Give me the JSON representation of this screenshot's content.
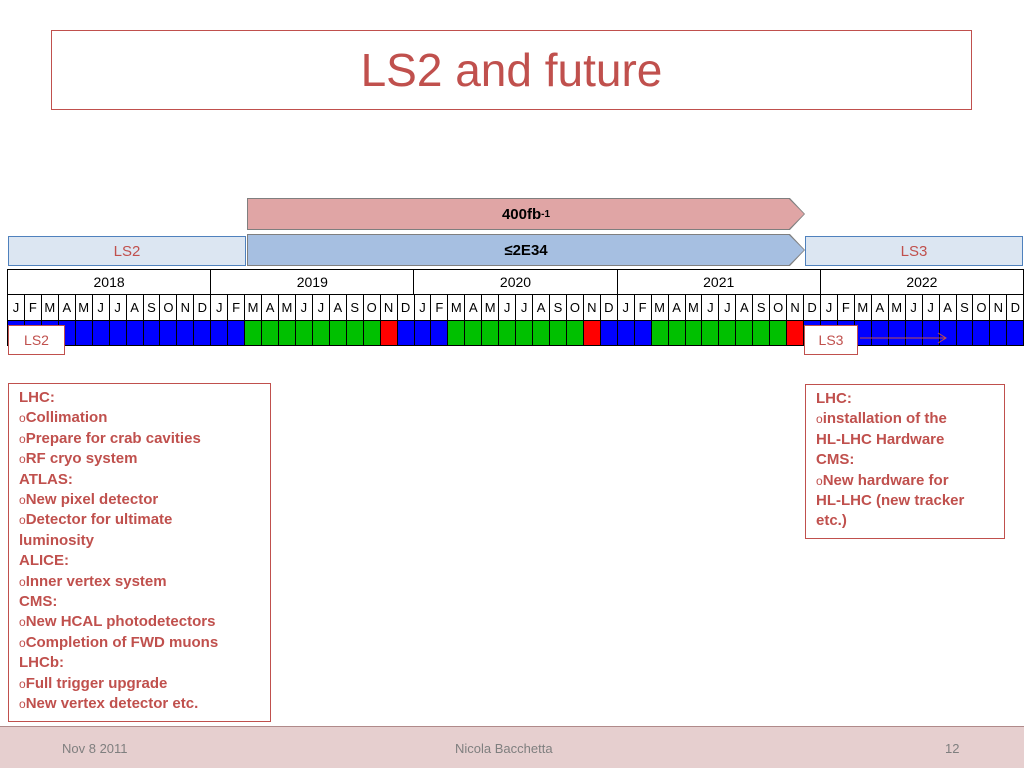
{
  "title": "LS2 and future",
  "fb_arrow": {
    "label": "400fb",
    "superscript": "-1"
  },
  "lumi_arrow": {
    "label": "≤2E34"
  },
  "banners": {
    "left": "LS2",
    "right": "LS3"
  },
  "years": [
    "2018",
    "2019",
    "2020",
    "2021",
    "2022"
  ],
  "months": [
    "J",
    "F",
    "M",
    "A",
    "M",
    "J",
    "J",
    "A",
    "S",
    "O",
    "N",
    "D"
  ],
  "schedule_colors": {
    "blue": "#0000ff",
    "green": "#00c000",
    "red": "#ff0000"
  },
  "schedule": [
    [
      "blue",
      "blue",
      "blue",
      "blue",
      "blue",
      "blue",
      "blue",
      "blue",
      "blue",
      "blue",
      "blue",
      "blue"
    ],
    [
      "blue",
      "blue",
      "green",
      "green",
      "green",
      "green",
      "green",
      "green",
      "green",
      "green",
      "red",
      "blue"
    ],
    [
      "blue",
      "blue",
      "green",
      "green",
      "green",
      "green",
      "green",
      "green",
      "green",
      "green",
      "red",
      "blue"
    ],
    [
      "blue",
      "blue",
      "green",
      "green",
      "green",
      "green",
      "green",
      "green",
      "green",
      "green",
      "red",
      "blue"
    ],
    [
      "blue",
      "blue",
      "blue",
      "blue",
      "blue",
      "blue",
      "blue",
      "blue",
      "blue",
      "blue",
      "blue",
      "blue"
    ]
  ],
  "labels": {
    "ls2": "LS2",
    "ls3": "LS3"
  },
  "left_notes": [
    {
      "bullet": "",
      "text": "LHC:"
    },
    {
      "bullet": "o",
      "text": "Collimation"
    },
    {
      "bullet": "o",
      "text": "Prepare for crab cavities"
    },
    {
      "bullet": "o",
      "text": "RF cryo system"
    },
    {
      "bullet": "",
      "text": "ATLAS:"
    },
    {
      "bullet": "o",
      "text": "New pixel detector"
    },
    {
      "bullet": "o",
      "text": "Detector for ultimate"
    },
    {
      "bullet": "",
      "text": "luminosity"
    },
    {
      "bullet": "",
      "text": "ALICE:"
    },
    {
      "bullet": "o",
      "text": "Inner vertex system"
    },
    {
      "bullet": "",
      "text": "CMS:"
    },
    {
      "bullet": "o",
      "text": "New HCAL photodetectors"
    },
    {
      "bullet": "o",
      "text": "Completion of FWD muons"
    },
    {
      "bullet": "",
      "text": "LHCb:"
    },
    {
      "bullet": "o",
      "text": "Full trigger upgrade"
    },
    {
      "bullet": "o",
      "text": "New vertex detector etc."
    }
  ],
  "right_notes": [
    {
      "bullet": "",
      "text": "LHC:"
    },
    {
      "bullet": "o",
      "text": "installation of the"
    },
    {
      "bullet": "",
      "text": "HL-LHC Hardware"
    },
    {
      "bullet": "",
      "text": "CMS:"
    },
    {
      "bullet": "o",
      "text": "New hardware for"
    },
    {
      "bullet": "",
      "text": "HL-LHC (new tracker"
    },
    {
      "bullet": "",
      "text": "etc.)"
    }
  ],
  "footer": {
    "date": "Nov 8 2011",
    "author": "Nicola Bacchetta",
    "page": "12"
  }
}
